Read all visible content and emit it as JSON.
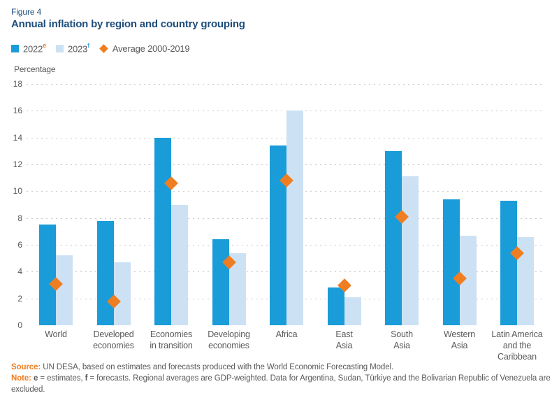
{
  "figure_label": "Figure 4",
  "title": "Annual inflation by region and country grouping",
  "axis": {
    "unit_label": "Percentage"
  },
  "legend": [
    {
      "label": "2022",
      "sup": "e"
    },
    {
      "label": "2023",
      "sup": "f"
    },
    {
      "label": "Average 2000-2019",
      "sup": ""
    }
  ],
  "colors": {
    "series_2022": "#1A9CD8",
    "series_2023": "#CDE1F4",
    "average_marker": "#EF7E22",
    "title_navy": "#1F4E7B",
    "text_gray": "#58595B",
    "gridline": "#C9C9C9",
    "sup_e": "#EF7E22",
    "sup_f": "#45ACE0"
  },
  "chart_data": {
    "type": "bar",
    "title": "Annual inflation by region and country grouping",
    "ylabel": "Percentage",
    "ylim": [
      0,
      18
    ],
    "yticks": [
      0,
      2,
      4,
      6,
      8,
      10,
      12,
      14,
      16,
      18
    ],
    "grid": "dotted-horizontal",
    "legend_position": "top-left",
    "categories": [
      "World",
      "Developed economies",
      "Economies in transition",
      "Developing economies",
      "Africa",
      "East Asia",
      "South Asia",
      "Western Asia",
      "Latin America and the Caribbean"
    ],
    "category_lines": [
      [
        "World"
      ],
      [
        "Developed",
        "economies"
      ],
      [
        "Economies",
        "in transition"
      ],
      [
        "Developing",
        "economies"
      ],
      [
        "Africa"
      ],
      [
        "East",
        "Asia"
      ],
      [
        "South",
        "Asia"
      ],
      [
        "Western",
        "Asia"
      ],
      [
        "Latin America",
        "and the",
        "Caribbean"
      ]
    ],
    "series": [
      {
        "name": "2022e",
        "values": [
          7.5,
          7.8,
          14.0,
          6.4,
          13.4,
          2.8,
          13.0,
          9.4,
          9.3
        ]
      },
      {
        "name": "2023f",
        "values": [
          5.2,
          4.7,
          9.0,
          5.4,
          16.0,
          2.1,
          11.1,
          6.7,
          6.6
        ]
      }
    ],
    "markers": {
      "name": "Average 2000-2019",
      "values": [
        3.1,
        1.8,
        10.6,
        4.7,
        10.8,
        3.0,
        8.1,
        3.5,
        5.4
      ]
    }
  },
  "footer": {
    "source_label": "Source:",
    "source_text": "UN DESA, based on estimates and forecasts produced with the World Economic Forecasting Model.",
    "note_label": "Note:",
    "note_segments": [
      {
        "text": "e",
        "bold": true
      },
      {
        "text": " = estimates, ",
        "bold": false
      },
      {
        "text": "f",
        "bold": true
      },
      {
        "text": " = forecasts. Regional averages are GDP-weighted. Data for Argentina, Sudan, Türkiye and the Bolivarian Republic of Venezuela are excluded.",
        "bold": false
      }
    ]
  }
}
